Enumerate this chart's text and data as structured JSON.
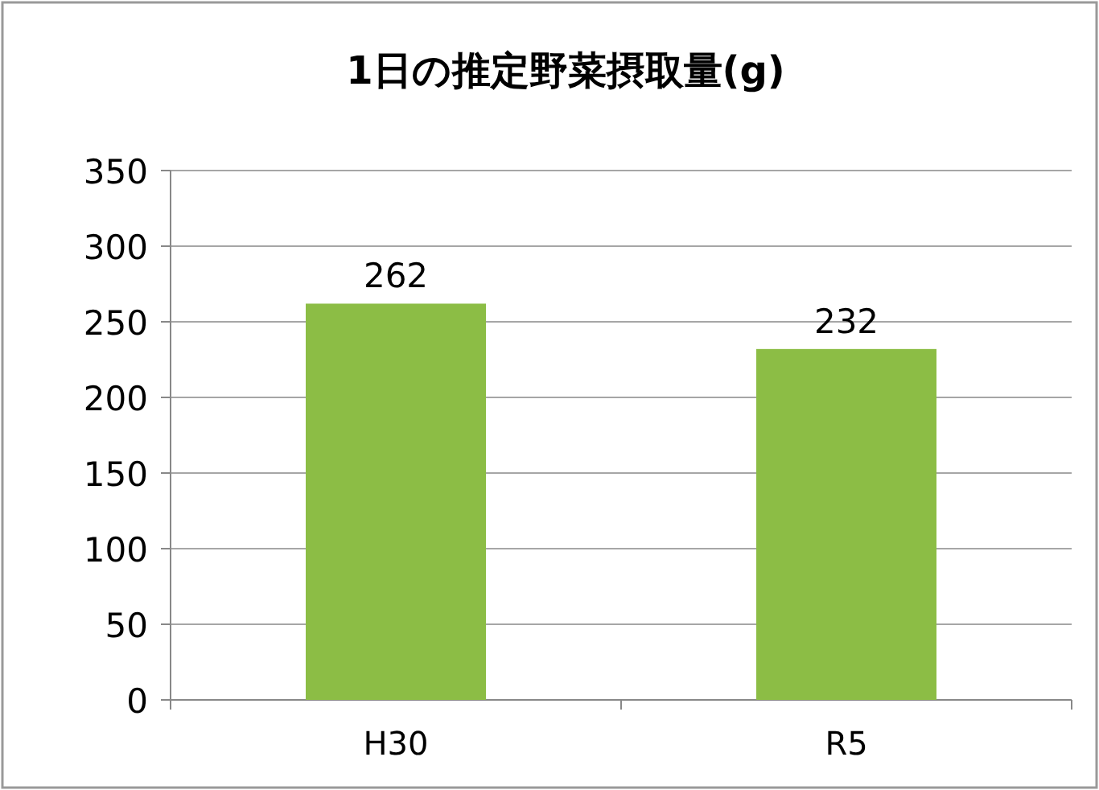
{
  "chart_data": {
    "type": "bar",
    "title": "1日の推定野菜摂取量(g)",
    "categories": [
      "H30",
      "R5"
    ],
    "values": [
      262,
      232
    ],
    "color": "#8cbd45",
    "ylim": [
      0,
      350
    ],
    "yticks": [
      0,
      50,
      100,
      150,
      200,
      250,
      300,
      350
    ],
    "grid": "y",
    "data_labels": true
  }
}
